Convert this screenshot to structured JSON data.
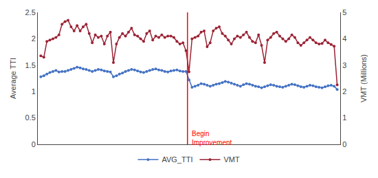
{
  "chart_data": {
    "type": "line",
    "ylabel": "Average TTI",
    "y2label": "VMT (Millions)",
    "categories": [
      null,
      null,
      null,
      null,
      null,
      null,
      null,
      null,
      null,
      null,
      null,
      null,
      null,
      null,
      null,
      null,
      null,
      null,
      null,
      null,
      null,
      null,
      null,
      null,
      null,
      null,
      null,
      null,
      null,
      null,
      null,
      null,
      null,
      null,
      null,
      null,
      null,
      null,
      null,
      null,
      null,
      null,
      null,
      null,
      null,
      null,
      null,
      null,
      null,
      null,
      null,
      null,
      null,
      null,
      null,
      null,
      null,
      null,
      null,
      null,
      null,
      null,
      null,
      null,
      null,
      null,
      null,
      null,
      null,
      null,
      null,
      null,
      null,
      null,
      null,
      null,
      null,
      null,
      null,
      null,
      null,
      null,
      null,
      null,
      null,
      null,
      null,
      null,
      null,
      null,
      null,
      null,
      null,
      null,
      null,
      null,
      null,
      null,
      null
    ],
    "series": [
      {
        "name": "AVG_TTI",
        "color": "#4472C4",
        "marker": "circle",
        "axis": "y",
        "values": [
          1.28,
          1.3,
          1.33,
          1.36,
          1.38,
          1.4,
          1.37,
          1.38,
          1.38,
          1.4,
          1.42,
          1.44,
          1.46,
          1.45,
          1.43,
          1.42,
          1.4,
          1.38,
          1.4,
          1.42,
          1.41,
          1.39,
          1.38,
          1.37,
          1.28,
          1.3,
          1.33,
          1.35,
          1.38,
          1.4,
          1.42,
          1.41,
          1.39,
          1.37,
          1.36,
          1.38,
          1.4,
          1.42,
          1.43,
          1.41,
          1.4,
          1.38,
          1.37,
          1.39,
          1.4,
          1.41,
          1.39,
          1.38,
          1.38,
          1.22,
          1.08,
          1.1,
          1.12,
          1.15,
          1.14,
          1.12,
          1.1,
          1.12,
          1.14,
          1.15,
          1.17,
          1.19,
          1.18,
          1.16,
          1.14,
          1.12,
          1.1,
          1.13,
          1.15,
          1.14,
          1.12,
          1.1,
          1.09,
          1.07,
          1.09,
          1.11,
          1.13,
          1.12,
          1.1,
          1.09,
          1.08,
          1.1,
          1.12,
          1.14,
          1.13,
          1.11,
          1.09,
          1.08,
          1.1,
          1.12,
          1.11,
          1.09,
          1.08,
          1.07,
          1.09,
          1.11,
          1.12,
          1.1,
          1.04
        ]
      },
      {
        "name": "VMT",
        "color": "#9B2335",
        "marker": "circle",
        "axis": "y2",
        "values": [
          3.35,
          3.3,
          3.9,
          3.95,
          4.0,
          4.05,
          4.15,
          4.55,
          4.65,
          4.7,
          4.45,
          4.3,
          4.5,
          4.3,
          4.45,
          4.55,
          4.2,
          3.85,
          4.15,
          4.05,
          4.1,
          3.8,
          4.1,
          4.25,
          3.1,
          3.8,
          4.05,
          4.2,
          4.1,
          4.25,
          4.4,
          4.15,
          4.1,
          4.0,
          3.9,
          4.2,
          4.3,
          3.95,
          4.1,
          4.05,
          4.15,
          4.05,
          4.1,
          4.1,
          4.05,
          3.9,
          3.8,
          3.85,
          3.55,
          2.75,
          4.0,
          4.05,
          4.1,
          4.25,
          4.3,
          3.7,
          3.85,
          4.3,
          4.4,
          4.45,
          4.2,
          4.1,
          3.95,
          3.8,
          4.0,
          4.1,
          4.05,
          4.15,
          4.25,
          4.05,
          3.9,
          3.85,
          4.15,
          3.75,
          3.1,
          3.95,
          4.05,
          4.2,
          4.25,
          4.1,
          4.0,
          3.9,
          4.0,
          4.15,
          4.05,
          3.85,
          3.75,
          3.85,
          3.95,
          4.05,
          3.95,
          3.85,
          3.8,
          3.82,
          3.95,
          3.85,
          3.78,
          3.72,
          2.25
        ]
      }
    ],
    "ylim": [
      0,
      2.5
    ],
    "yticks": [
      0,
      0.5,
      1,
      1.5,
      2,
      2.5
    ],
    "y2lim": [
      0,
      5
    ],
    "y2ticks": [
      0,
      1,
      2,
      3,
      4,
      5
    ],
    "annotations": [
      {
        "text": "Begin\nImprovement",
        "x": 48.5,
        "color": "red"
      }
    ],
    "grid": false,
    "legend": "bottom",
    "tick_labels": "y"
  }
}
